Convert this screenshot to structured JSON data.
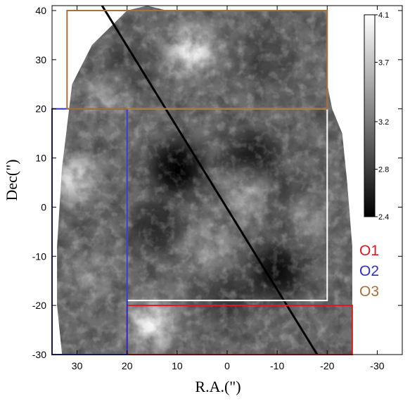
{
  "chart_data": {
    "type": "heatmap",
    "xlabel": "R.A.(\")",
    "ylabel": "Dec(\")",
    "xlim": [
      35,
      -35
    ],
    "ylim": [
      -30,
      41
    ],
    "x_ticks": [
      30,
      20,
      10,
      0,
      -10,
      -20,
      -30
    ],
    "y_ticks": [
      40,
      30,
      20,
      10,
      0,
      -10,
      -20,
      -30
    ],
    "colorbar": {
      "range": [
        2.4,
        4.1
      ],
      "tick_values": [
        4.1,
        3.7,
        3.2,
        2.8,
        2.4
      ],
      "tick_labels": [
        "4.1",
        "3.7",
        "3.2",
        "2.8",
        "2.4"
      ],
      "colormap": "grayscale"
    },
    "map_outline": [
      [
        20,
        40
      ],
      [
        16,
        41
      ],
      [
        12,
        40
      ],
      [
        -20,
        40
      ],
      [
        -20,
        25
      ],
      [
        -21,
        20
      ],
      [
        -23,
        15
      ],
      [
        -24,
        5
      ],
      [
        -25,
        -8
      ],
      [
        -25,
        -20
      ],
      [
        -25,
        -30
      ],
      [
        -20,
        -30
      ],
      [
        20,
        -30
      ],
      [
        33,
        -30
      ],
      [
        34,
        -20
      ],
      [
        34,
        -8
      ],
      [
        33,
        8
      ],
      [
        31,
        25
      ],
      [
        27,
        33
      ],
      [
        23,
        37
      ]
    ],
    "bright_spots": [
      {
        "x": 7,
        "y": 32,
        "level": 4.1
      },
      {
        "x": 15,
        "y": -24,
        "level": 4.1
      },
      {
        "x": 31,
        "y": 6,
        "level": 3.9
      },
      {
        "x": -4,
        "y": 2,
        "level": 3.5
      },
      {
        "x": 4,
        "y": -8,
        "level": 3.5
      },
      {
        "x": -16,
        "y": -2,
        "level": 3.4
      },
      {
        "x": 24,
        "y": 22,
        "level": 3.5
      },
      {
        "x": 27,
        "y": -14,
        "level": 3.4
      }
    ],
    "dark_spots": [
      {
        "x": 10,
        "y": 8,
        "level": 2.4
      },
      {
        "x": -10,
        "y": -13,
        "level": 2.5
      },
      {
        "x": -5,
        "y": 10,
        "level": 2.6
      },
      {
        "x": 14,
        "y": -4,
        "level": 2.7
      },
      {
        "x": 0,
        "y": -18,
        "level": 2.8
      },
      {
        "x": -12,
        "y": 0,
        "level": 2.7
      },
      {
        "x": 20,
        "y": 28,
        "level": 2.9
      },
      {
        "x": -8,
        "y": 30,
        "level": 2.9
      }
    ],
    "diagonal_line": {
      "x1": 25,
      "y1": 41,
      "x2": -18,
      "y2": -30,
      "color": "#000000"
    },
    "regions": [
      {
        "id": "white-region",
        "x": [
          -20,
          20
        ],
        "y": [
          -19,
          20
        ],
        "color": "#ffffff",
        "label": ""
      },
      {
        "id": "O1",
        "x": [
          -25,
          20
        ],
        "y": [
          -30,
          -20
        ],
        "color": "#e0181e",
        "label": "O1"
      },
      {
        "id": "O2",
        "x": [
          20,
          35
        ],
        "y": [
          -30,
          20
        ],
        "color": "#2b2fce",
        "label": "O2"
      },
      {
        "id": "O3",
        "x": [
          -20,
          32
        ],
        "y": [
          20,
          40
        ],
        "color": "#a8703a",
        "label": "O3"
      }
    ],
    "legend_position": "right"
  }
}
